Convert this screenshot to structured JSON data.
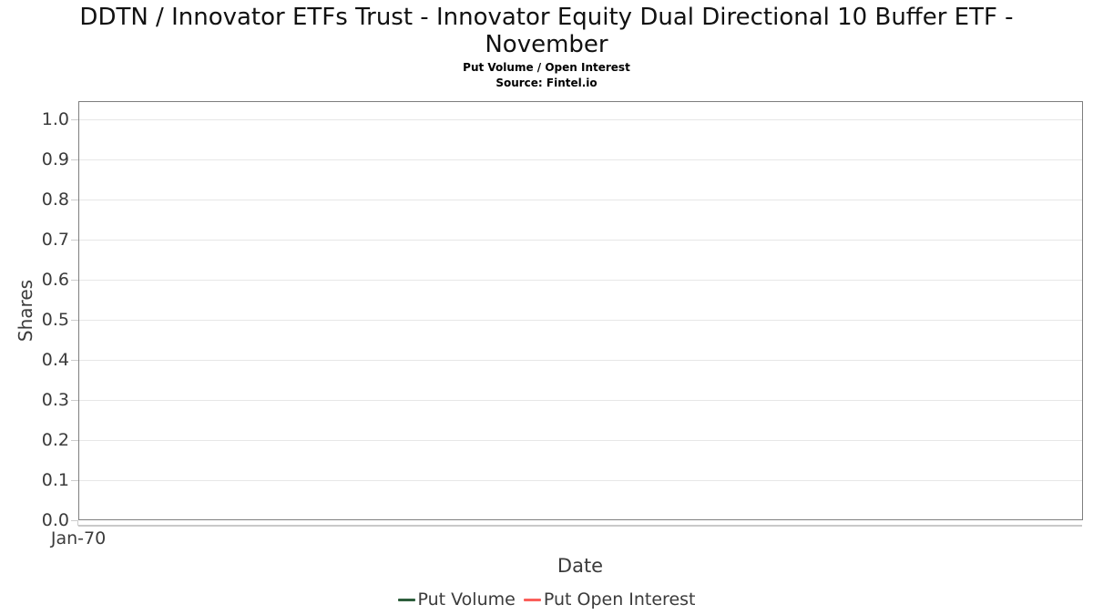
{
  "chart_data": {
    "type": "line",
    "title": "DDTN / Innovator ETFs Trust - Innovator Equity Dual Directional 10 Buffer ETF - November",
    "subtitle": "Put Volume / Open Interest",
    "source": "Source: Fintel.io",
    "xlabel": "Date",
    "ylabel": "Shares",
    "x": [
      "Jan-70"
    ],
    "y_ticks": [
      0.0,
      0.1,
      0.2,
      0.3,
      0.4,
      0.5,
      0.6,
      0.7,
      0.8,
      0.9,
      1.0
    ],
    "ylim": [
      0,
      1.045
    ],
    "grid": "horizontal",
    "legend_position": "bottom",
    "series": [
      {
        "name": "Put Volume",
        "color": "#2d5e3c",
        "values": []
      },
      {
        "name": "Put Open Interest",
        "color": "#fa5f5a",
        "values": []
      }
    ],
    "colors": {
      "plot_border": "#7e7e7e",
      "gridline": "#e7e7e7",
      "tick_text": "#3b3b3b",
      "title_text": "#111111"
    }
  }
}
